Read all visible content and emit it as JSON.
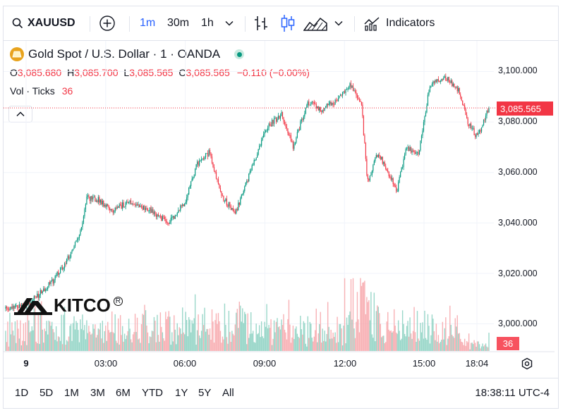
{
  "toolbar": {
    "symbol": "XAUUSD",
    "intervals": [
      "1m",
      "30m",
      "1h"
    ],
    "active_interval": "1m",
    "indicators_label": "Indicators"
  },
  "legend": {
    "title": "Gold Spot / U.S. Dollar · 1 · OANDA",
    "o_label": "O",
    "o_value": "3,085.680",
    "h_label": "H",
    "h_value": "3,085.700",
    "l_label": "L",
    "l_value": "3,085.565",
    "c_label": "C",
    "c_value": "3,085.565",
    "change": "−0.110 (−0.00%)",
    "vol_label": "Vol · Ticks",
    "vol_value": "36"
  },
  "price_axis": {
    "ticks": [
      "3,100.000",
      "3,080.000",
      "3,060.000",
      "3,040.000",
      "3,020.000",
      "3,000.000"
    ],
    "current_price": "3,085.565",
    "current_volume": "36"
  },
  "time_axis": {
    "ticks": [
      "9",
      "03:00",
      "06:00",
      "09:00",
      "12:00",
      "15:00",
      "18:04"
    ]
  },
  "ranges": [
    "1D",
    "5D",
    "1M",
    "3M",
    "6M",
    "YTD",
    "1Y",
    "5Y",
    "All"
  ],
  "clock": "18:38:11 UTC-4",
  "watermark": "KITCO",
  "colors": {
    "up": "#089981",
    "down": "#f23645",
    "accent": "#2962ff"
  },
  "chart_data": {
    "type": "candlestick",
    "symbol": "XAUUSD",
    "title": "Gold Spot / U.S. Dollar · 1 · OANDA",
    "interval": "1m",
    "ylim": [
      2989,
      3106
    ],
    "y_ticks": [
      3000,
      3020,
      3040,
      3060,
      3080,
      3100
    ],
    "x_ticks": [
      "9",
      "03:00",
      "06:00",
      "09:00",
      "12:00",
      "15:00",
      "18:04"
    ],
    "price_path": [
      {
        "t": 0.0,
        "p": 3006
      },
      {
        "t": 1.0,
        "p": 3008
      },
      {
        "t": 2.0,
        "p": 3017
      },
      {
        "t": 2.6,
        "p": 3025
      },
      {
        "t": 3.2,
        "p": 3037
      },
      {
        "t": 3.45,
        "p": 3050
      },
      {
        "t": 4.0,
        "p": 3049
      },
      {
        "t": 4.5,
        "p": 3045
      },
      {
        "t": 5.2,
        "p": 3048
      },
      {
        "t": 6.0,
        "p": 3046
      },
      {
        "t": 6.9,
        "p": 3040
      },
      {
        "t": 7.6,
        "p": 3048
      },
      {
        "t": 8.1,
        "p": 3063
      },
      {
        "t": 8.65,
        "p": 3068
      },
      {
        "t": 9.2,
        "p": 3050
      },
      {
        "t": 9.75,
        "p": 3044
      },
      {
        "t": 10.5,
        "p": 3063
      },
      {
        "t": 11.1,
        "p": 3078
      },
      {
        "t": 11.7,
        "p": 3083
      },
      {
        "t": 12.2,
        "p": 3070
      },
      {
        "t": 12.8,
        "p": 3088
      },
      {
        "t": 13.4,
        "p": 3085
      },
      {
        "t": 14.0,
        "p": 3088
      },
      {
        "t": 14.6,
        "p": 3095
      },
      {
        "t": 15.1,
        "p": 3086
      },
      {
        "t": 15.35,
        "p": 3056
      },
      {
        "t": 15.8,
        "p": 3068
      },
      {
        "t": 16.6,
        "p": 3053
      },
      {
        "t": 17.0,
        "p": 3070
      },
      {
        "t": 17.5,
        "p": 3067
      },
      {
        "t": 18.0,
        "p": 3095
      },
      {
        "t": 18.6,
        "p": 3098
      },
      {
        "t": 19.2,
        "p": 3093
      },
      {
        "t": 19.6,
        "p": 3080
      },
      {
        "t": 20.0,
        "p": 3074
      },
      {
        "t": 20.5,
        "p": 3085.565
      }
    ],
    "volume": {
      "typical_ticks_low": 15,
      "typical_ticks_high": 80,
      "peak_ticks": 150,
      "last_ticks": 36
    },
    "last": {
      "open": 3085.68,
      "high": 3085.7,
      "low": 3085.565,
      "close": 3085.565
    }
  }
}
